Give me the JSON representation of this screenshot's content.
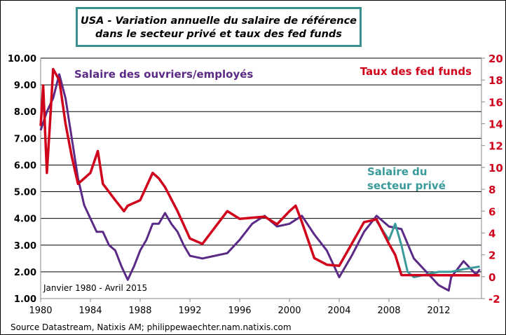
{
  "chart_data": {
    "type": "line",
    "title": [
      "USA - Variation annuelle du salaire de référence",
      "dans le secteur privé et taux des fed funds"
    ],
    "annotation": "Janvier 1980 - Avril 2015",
    "source": "Source Datastream, Natixis AM; philippewaechter.nam.natixis.com",
    "x_ticks": [
      "1980",
      "1984",
      "1988",
      "1992",
      "1996",
      "2000",
      "2004",
      "2008",
      "2012"
    ],
    "xlim": [
      1980,
      2015.3
    ],
    "y_left": {
      "ylim": [
        1,
        10
      ],
      "ticks": [
        "1.00",
        "2.00",
        "3.00",
        "4.00",
        "5.00",
        "6.00",
        "7.00",
        "8.00",
        "9.00",
        "10.00"
      ]
    },
    "y_right": {
      "ylim": [
        -2,
        20
      ],
      "ticks": [
        "-2",
        "0",
        "2",
        "4",
        "6",
        "8",
        "10",
        "12",
        "14",
        "16",
        "18",
        "20"
      ],
      "color": "#d0021b"
    },
    "grid": "horizontal",
    "series": [
      {
        "name": "Salaire des ouvriers/employés",
        "axis": "left",
        "color": "#5b2a86",
        "x": [
          1980,
          1980.5,
          1981,
          1981.5,
          1982,
          1982.5,
          1983,
          1983.5,
          1984,
          1984.5,
          1985,
          1985.5,
          1986,
          1986.5,
          1987,
          1987.5,
          1988,
          1988.5,
          1989,
          1989.5,
          1990,
          1990.5,
          1991,
          1991.5,
          1992,
          1993,
          1994,
          1995,
          1996,
          1997,
          1998,
          1999,
          2000,
          2001,
          2002,
          2003,
          2004,
          2004.5,
          2005,
          2006,
          2007,
          2008,
          2009,
          2010,
          2011,
          2012,
          2012.8,
          2013,
          2014,
          2015,
          2015.3
        ],
        "y": [
          7.3,
          8.0,
          8.5,
          9.4,
          8.5,
          7.0,
          5.5,
          4.5,
          4.0,
          3.5,
          3.5,
          3.0,
          2.8,
          2.2,
          1.7,
          2.2,
          2.8,
          3.2,
          3.8,
          3.8,
          4.2,
          3.8,
          3.5,
          3.0,
          2.6,
          2.5,
          2.6,
          2.7,
          3.2,
          3.8,
          4.1,
          3.7,
          3.8,
          4.1,
          3.4,
          2.8,
          1.8,
          2.2,
          2.6,
          3.5,
          4.1,
          3.7,
          3.6,
          2.5,
          2.0,
          1.5,
          1.3,
          1.8,
          2.4,
          1.9,
          2.1
        ]
      },
      {
        "name": "Salaire du secteur privé",
        "axis": "left",
        "color": "#3a9a9a",
        "x": [
          2007,
          2008,
          2008.5,
          2009,
          2009.5,
          2010,
          2011,
          2012,
          2013,
          2014,
          2015.3
        ],
        "y": [
          3.9,
          3.2,
          3.8,
          3.0,
          2.0,
          1.8,
          1.9,
          2.0,
          2.0,
          2.1,
          2.2
        ]
      },
      {
        "name": "Taux des fed funds",
        "axis": "right",
        "color": "#d0021b",
        "x": [
          1980,
          1980.2,
          1980.5,
          1980.8,
          1981,
          1981.5,
          1982,
          1982.5,
          1982.9,
          1983,
          1984,
          1984.6,
          1985,
          1986,
          1986.7,
          1987,
          1988,
          1989,
          1989.5,
          1990,
          1991,
          1992,
          1993,
          1994,
          1995,
          1996,
          1998,
          1999,
          2000,
          2000.5,
          2001,
          2002,
          2003,
          2004,
          2005,
          2006,
          2007,
          2008,
          2008.5,
          2009,
          2015.3
        ],
        "y": [
          13.8,
          17.5,
          9.5,
          15,
          19,
          18,
          14,
          11,
          9,
          8.5,
          9.5,
          11.5,
          8.5,
          7,
          6,
          6.5,
          7,
          9.5,
          9,
          8.2,
          6,
          3.5,
          3,
          4.5,
          6,
          5.3,
          5.5,
          4.8,
          6,
          6.5,
          5,
          1.7,
          1.1,
          1.0,
          3,
          5,
          5.25,
          3,
          2,
          0.15,
          0.12
        ]
      }
    ]
  }
}
